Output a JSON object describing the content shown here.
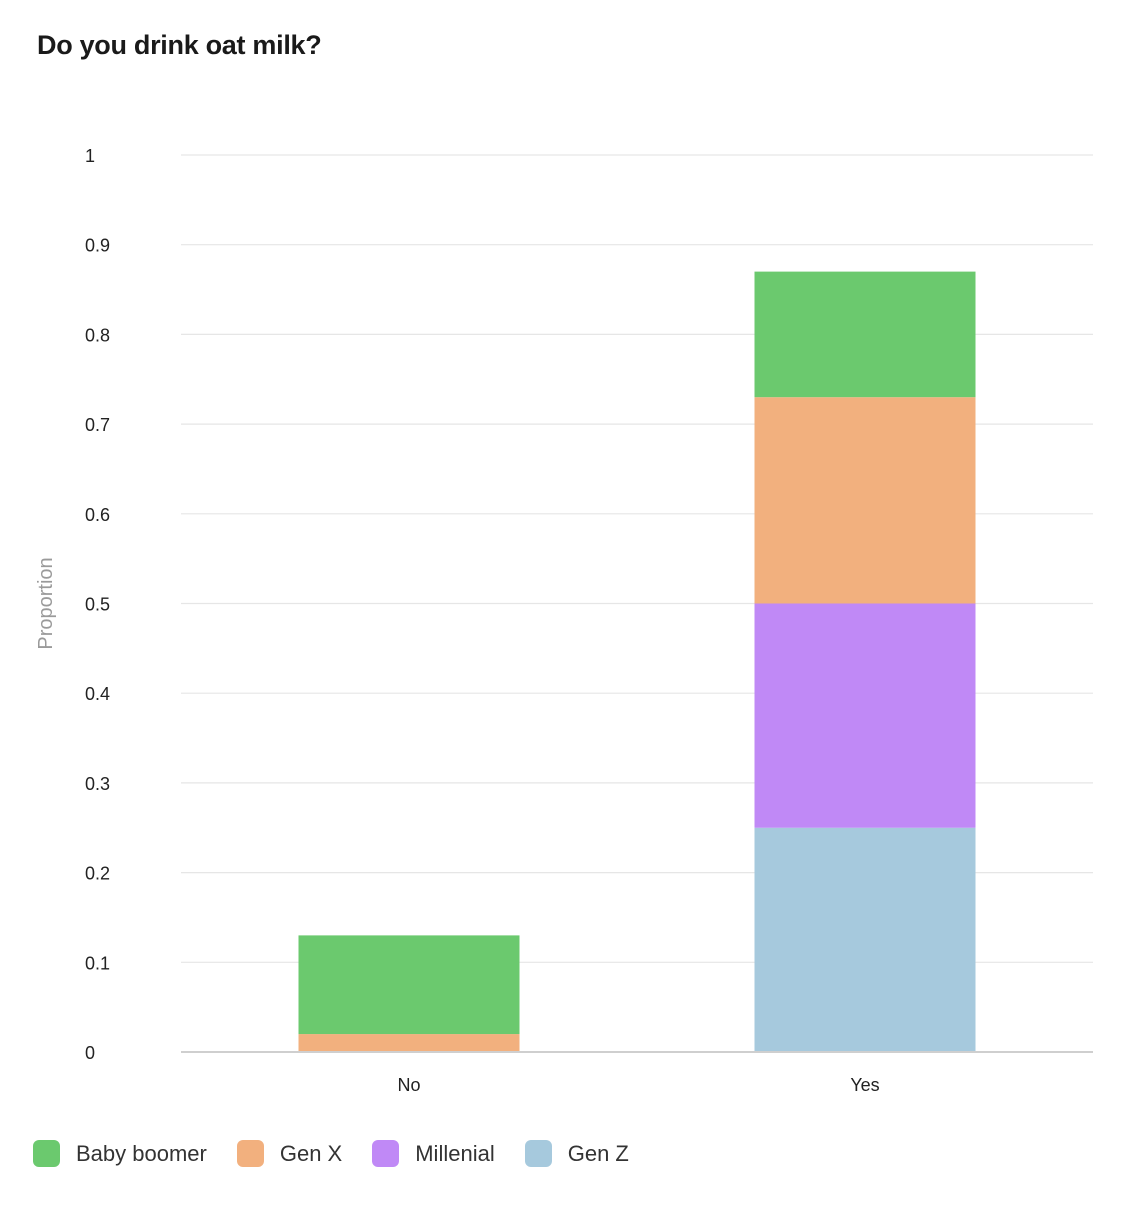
{
  "chart_data": {
    "type": "bar",
    "stacked": true,
    "title": "Do you drink oat milk?",
    "xlabel": "",
    "ylabel": "Proportion",
    "ylim": [
      0,
      1
    ],
    "y_ticks": [
      "0",
      "0.1",
      "0.2",
      "0.3",
      "0.4",
      "0.5",
      "0.6",
      "0.7",
      "0.8",
      "0.9",
      "1"
    ],
    "categories": [
      "No",
      "Yes"
    ],
    "grid": true,
    "legend_position": "bottom-left",
    "series": [
      {
        "name": "Gen Z",
        "color": "#a6c9dd",
        "values": [
          0,
          0.25
        ]
      },
      {
        "name": "Millenial",
        "color": "#c089f6",
        "values": [
          0,
          0.25
        ]
      },
      {
        "name": "Gen X",
        "color": "#f2b07e",
        "values": [
          0.02,
          0.23
        ]
      },
      {
        "name": "Baby boomer",
        "color": "#6bc96e",
        "values": [
          0.11,
          0.14
        ]
      }
    ],
    "legend_order": [
      "Baby boomer",
      "Gen X",
      "Millenial",
      "Gen Z"
    ]
  }
}
